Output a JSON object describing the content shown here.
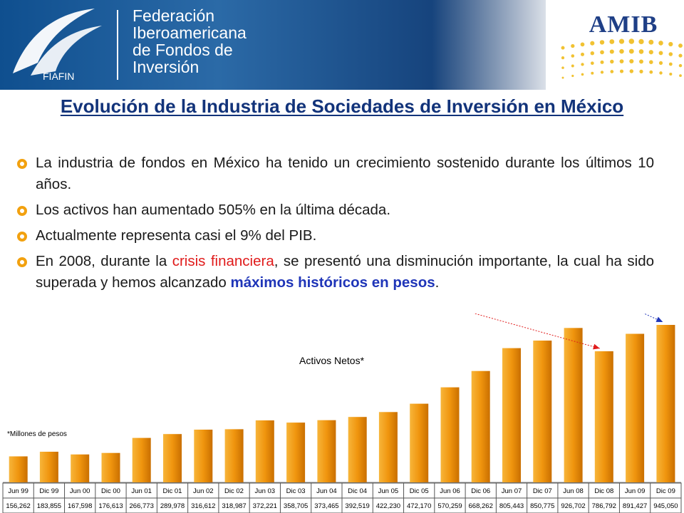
{
  "header": {
    "federation_name_lines": [
      "Federación",
      "Iberoamericana",
      "de Fondos de",
      "Inversión"
    ],
    "fiafin_logo_text": "FIAFIN",
    "amib_logo_text": "AMIB"
  },
  "slide": {
    "title": "Evolución de la Industria de Sociedades de Inversión en México",
    "bullets": [
      {
        "text": "La industria de fondos en México ha tenido un crecimiento sostenido durante los últimos 10 años."
      },
      {
        "text": "Los activos han aumentado 505% en la última década."
      },
      {
        "text": "Actualmente representa casi el 9% del PIB."
      },
      {
        "part1": "En 2008, durante la ",
        "highlight_red": "crisis financiera",
        "part2": ", se presentó una disminución importante, la cual ha sido superada y hemos alcanzado ",
        "highlight_blue": "máximos históricos en pesos",
        "part3": "."
      }
    ]
  },
  "chart_data": {
    "type": "bar",
    "title": "Activos Netos*",
    "note": "*Millones de pesos",
    "categories": [
      "Jun 99",
      "Dic 99",
      "Jun 00",
      "Dic 00",
      "Jun 01",
      "Dic 01",
      "Jun 02",
      "Dic 02",
      "Jun 03",
      "Dic 03",
      "Jun 04",
      "Dic 04",
      "Jun 05",
      "Dic 05",
      "Jun 06",
      "Dic 06",
      "Jun 07",
      "Dic 07",
      "Jun 08",
      "Dic 08",
      "Jun 09",
      "Dic 09"
    ],
    "values": [
      156262,
      183855,
      167598,
      176613,
      266773,
      289978,
      316612,
      318987,
      372221,
      358705,
      373465,
      392519,
      422230,
      472170,
      570259,
      668262,
      805443,
      850775,
      926702,
      786792,
      891427,
      945050
    ],
    "value_labels": [
      "156,262",
      "183,855",
      "167,598",
      "176,613",
      "266,773",
      "289,978",
      "316,612",
      "318,987",
      "372,221",
      "358,705",
      "373,465",
      "392,519",
      "422,230",
      "472,170",
      "570,259",
      "668,262",
      "805,443",
      "850,775",
      "926,702",
      "786,792",
      "891,427",
      "945,050"
    ],
    "ylim": [
      0,
      945050
    ],
    "bar_color": "#f0950e",
    "grid": false
  },
  "colors": {
    "title": "#12337a",
    "bullet_marker": "#f2a10f",
    "crisis_arrow": "#e01b1b",
    "record_arrow": "#1f35b8"
  }
}
